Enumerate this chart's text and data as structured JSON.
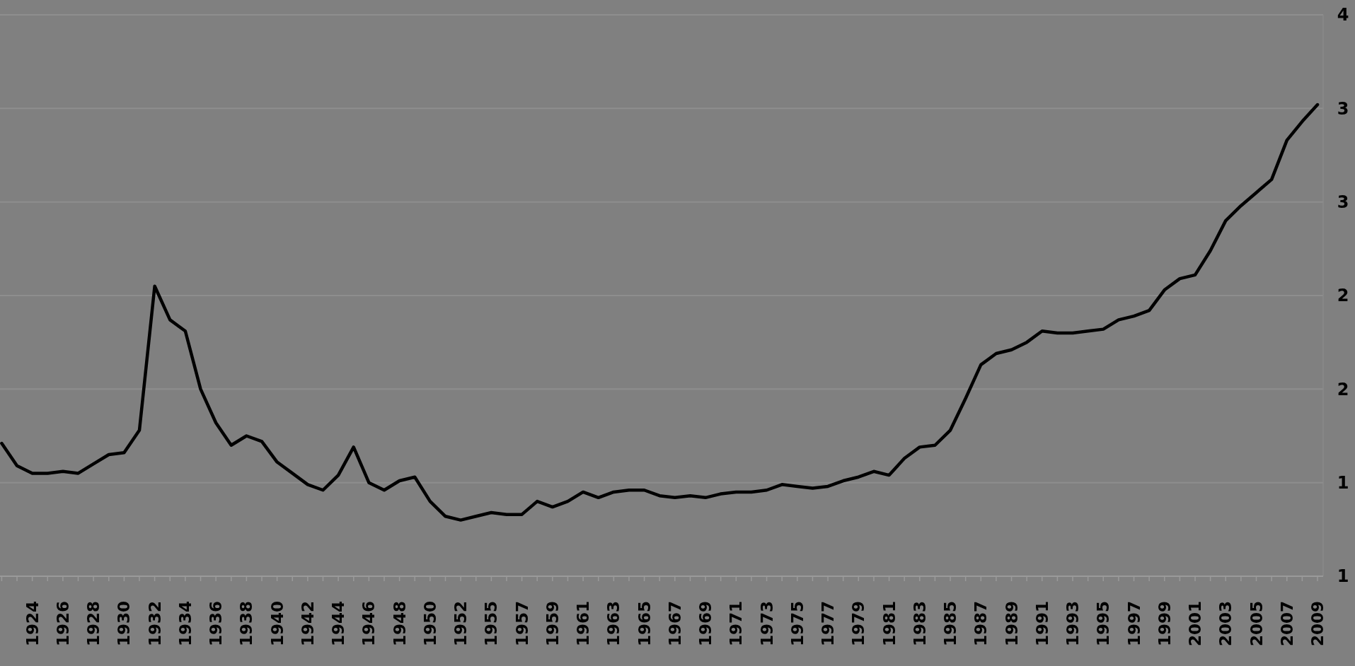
{
  "chart_data": {
    "type": "line",
    "categories": [
      null,
      null,
      "1924",
      null,
      "1926",
      null,
      "1928",
      null,
      "1930",
      null,
      "1932",
      null,
      "1934",
      null,
      "1936",
      null,
      "1938",
      null,
      "1940",
      null,
      "1942",
      null,
      "1944",
      null,
      "1946",
      null,
      "1948",
      null,
      "1950",
      null,
      "1952",
      null,
      "1955",
      null,
      "1957",
      null,
      "1959",
      null,
      "1961",
      null,
      "1963",
      null,
      "1965",
      null,
      "1967",
      null,
      "1969",
      null,
      "1971",
      null,
      "1973",
      null,
      "1975",
      null,
      "1977",
      null,
      "1979",
      null,
      "1981",
      null,
      "1983",
      null,
      "1985",
      null,
      "1987",
      null,
      "1989",
      null,
      "1991",
      null,
      "1993",
      null,
      "1995",
      null,
      "1997",
      null,
      "1999",
      null,
      "2001",
      null,
      "2003",
      null,
      "2005",
      null,
      "2007",
      null,
      "2009"
    ],
    "series": [
      {
        "color": "#000000",
        "values": [
          1.71,
          1.59,
          1.55,
          1.55,
          1.56,
          1.55,
          1.6,
          1.65,
          1.66,
          1.78,
          2.55,
          2.37,
          2.31,
          2.0,
          1.82,
          1.7,
          1.75,
          1.72,
          1.61,
          1.55,
          1.49,
          1.46,
          1.54,
          1.69,
          1.5,
          1.46,
          1.51,
          1.53,
          1.4,
          1.32,
          1.3,
          1.32,
          1.34,
          1.33,
          1.33,
          1.4,
          1.37,
          1.4,
          1.45,
          1.42,
          1.45,
          1.46,
          1.46,
          1.43,
          1.42,
          1.43,
          1.42,
          1.44,
          1.45,
          1.45,
          1.46,
          1.49,
          1.48,
          1.47,
          1.48,
          1.51,
          1.53,
          1.56,
          1.54,
          1.63,
          1.69,
          1.7,
          1.78,
          1.95,
          2.13,
          2.19,
          2.21,
          2.25,
          2.31,
          2.3,
          2.3,
          2.31,
          2.32,
          2.37,
          2.39,
          2.42,
          2.53,
          2.59,
          2.61,
          2.74,
          2.9,
          2.98,
          3.05,
          3.12,
          3.33,
          3.43,
          3.52
        ]
      }
    ],
    "ylim": [
      1,
      4
    ],
    "yticks": [
      {
        "value": 1,
        "label": "1"
      },
      {
        "value": 1.5,
        "label": "1"
      },
      {
        "value": 2,
        "label": "2"
      },
      {
        "value": 2.5,
        "label": "2"
      },
      {
        "value": 3,
        "label": "3"
      },
      {
        "value": 3.5,
        "label": "3"
      },
      {
        "value": 4,
        "label": "4"
      }
    ],
    "grid": "y",
    "marker": "none",
    "line_style": "solid"
  }
}
